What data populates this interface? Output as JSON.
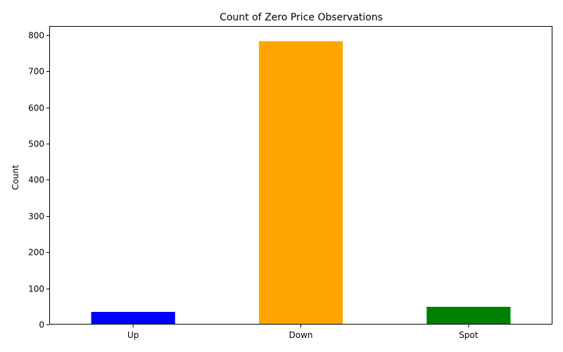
{
  "chart_data": {
    "type": "bar",
    "title": "Count of Zero Price Observations",
    "xlabel": "",
    "ylabel": "Count",
    "categories": [
      "Up",
      "Down",
      "Spot"
    ],
    "values": [
      35,
      783,
      49
    ],
    "colors": [
      "#0000ff",
      "#ffa500",
      "#008000"
    ],
    "ylim": [
      0,
      825
    ],
    "yticks": [
      0,
      100,
      200,
      300,
      400,
      500,
      600,
      700,
      800
    ],
    "grid": false,
    "legend": "none"
  }
}
